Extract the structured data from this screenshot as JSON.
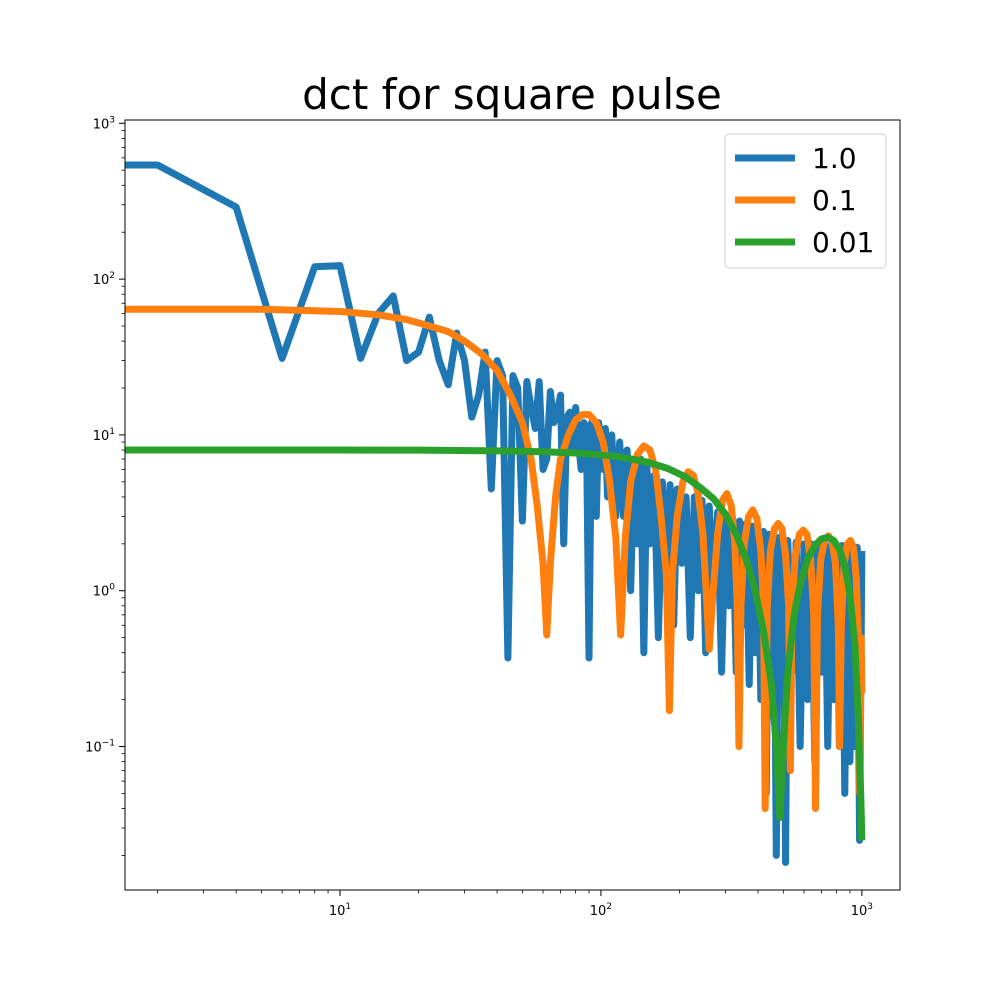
{
  "chart_data": {
    "type": "line",
    "title": "dct for square pulse",
    "xscale": "log",
    "yscale": "log",
    "xlim": [
      1.5,
      1400
    ],
    "ylim": [
      0.012,
      1050
    ],
    "xlabel": "",
    "ylabel": "",
    "x_ticks": [
      {
        "value": 10,
        "base": "10",
        "exp": "1"
      },
      {
        "value": 100,
        "base": "10",
        "exp": "2"
      },
      {
        "value": 1000,
        "base": "10",
        "exp": "3"
      }
    ],
    "y_ticks": [
      {
        "value": 0.1,
        "base": "10",
        "exp": "−1"
      },
      {
        "value": 1,
        "base": "10",
        "exp": "0"
      },
      {
        "value": 10,
        "base": "10",
        "exp": "1"
      },
      {
        "value": 100,
        "base": "10",
        "exp": "2"
      },
      {
        "value": 1000,
        "base": "10",
        "exp": "3"
      }
    ],
    "legend_position": "top-right",
    "series": [
      {
        "name": "1.0",
        "color": "#1f77b4",
        "points": [
          [
            1,
            540
          ],
          [
            2,
            540
          ],
          [
            4,
            290
          ],
          [
            6,
            31
          ],
          [
            8,
            120
          ],
          [
            10,
            122
          ],
          [
            12,
            31
          ],
          [
            14,
            60
          ],
          [
            16,
            78
          ],
          [
            18,
            30
          ],
          [
            20,
            34
          ],
          [
            22,
            57
          ],
          [
            24,
            30
          ],
          [
            26,
            21
          ],
          [
            28,
            45
          ],
          [
            30,
            30
          ],
          [
            32,
            13
          ],
          [
            34,
            18
          ],
          [
            36,
            34
          ],
          [
            38,
            4.5
          ],
          [
            40,
            30
          ],
          [
            42,
            24
          ],
          [
            44,
            0.37
          ],
          [
            46,
            24
          ],
          [
            48,
            20
          ],
          [
            50,
            2.8
          ],
          [
            52,
            22
          ],
          [
            54,
            15
          ],
          [
            56,
            11
          ],
          [
            58,
            22
          ],
          [
            60,
            6
          ],
          [
            62,
            7
          ],
          [
            64,
            19
          ],
          [
            66,
            12
          ],
          [
            68,
            14
          ],
          [
            70,
            18
          ],
          [
            72,
            2
          ],
          [
            74,
            13
          ],
          [
            76,
            14
          ],
          [
            78,
            8
          ],
          [
            80,
            15
          ],
          [
            82,
            9
          ],
          [
            84,
            6
          ],
          [
            86,
            12
          ],
          [
            88,
            11
          ],
          [
            90,
            0.37
          ],
          [
            92,
            12
          ],
          [
            94,
            10
          ],
          [
            96,
            3
          ],
          [
            98,
            12
          ],
          [
            100,
            9
          ],
          [
            102,
            6
          ],
          [
            104,
            11
          ],
          [
            106,
            4
          ],
          [
            110,
            10
          ],
          [
            114,
            3
          ],
          [
            118,
            9
          ],
          [
            122,
            3
          ],
          [
            126,
            8
          ],
          [
            130,
            1
          ],
          [
            134,
            7
          ],
          [
            138,
            2
          ],
          [
            142,
            7
          ],
          [
            146,
            0.4
          ],
          [
            150,
            6.5
          ],
          [
            154,
            2
          ],
          [
            160,
            5.5
          ],
          [
            166,
            0.5
          ],
          [
            172,
            5
          ],
          [
            178,
            1
          ],
          [
            184,
            4.8
          ],
          [
            190,
            0.6
          ],
          [
            196,
            4.5
          ],
          [
            204,
            1.5
          ],
          [
            212,
            4
          ],
          [
            220,
            0.5
          ],
          [
            228,
            4
          ],
          [
            236,
            1
          ],
          [
            244,
            3.8
          ],
          [
            252,
            0.4
          ],
          [
            260,
            3.5
          ],
          [
            270,
            1
          ],
          [
            280,
            3.2
          ],
          [
            290,
            0.3
          ],
          [
            300,
            3
          ],
          [
            310,
            0.8
          ],
          [
            320,
            2.9
          ],
          [
            330,
            0.3
          ],
          [
            340,
            2.8
          ],
          [
            350,
            0.6
          ],
          [
            360,
            2.7
          ],
          [
            370,
            0.25
          ],
          [
            380,
            2.6
          ],
          [
            390,
            0.4
          ],
          [
            400,
            2.5
          ],
          [
            410,
            0.2
          ],
          [
            420,
            2.4
          ],
          [
            430,
            0.05
          ],
          [
            440,
            2.3
          ],
          [
            450,
            0.3
          ],
          [
            460,
            2.2
          ],
          [
            470,
            0.02
          ],
          [
            480,
            2.2
          ],
          [
            490,
            0.2
          ],
          [
            500,
            2.1
          ],
          [
            510,
            0.018
          ],
          [
            520,
            2.1
          ],
          [
            540,
            0.3
          ],
          [
            560,
            2.05
          ],
          [
            580,
            0.1
          ],
          [
            600,
            2.0
          ],
          [
            620,
            0.2
          ],
          [
            640,
            2.0
          ],
          [
            660,
            0.08
          ],
          [
            680,
            2.0
          ],
          [
            700,
            0.3
          ],
          [
            720,
            2.0
          ],
          [
            740,
            0.1
          ],
          [
            760,
            1.95
          ],
          [
            780,
            0.2
          ],
          [
            800,
            1.95
          ],
          [
            820,
            0.1
          ],
          [
            840,
            1.95
          ],
          [
            860,
            0.05
          ],
          [
            880,
            1.9
          ],
          [
            900,
            0.08
          ],
          [
            920,
            1.9
          ],
          [
            940,
            0.1
          ],
          [
            960,
            1.9
          ],
          [
            980,
            0.025
          ],
          [
            1000,
            1.8
          ]
        ]
      },
      {
        "name": "0.1",
        "color": "#ff7f0e",
        "points": [
          [
            1,
            64
          ],
          [
            5,
            64
          ],
          [
            10,
            62
          ],
          [
            14,
            59
          ],
          [
            18,
            55
          ],
          [
            22,
            50
          ],
          [
            26,
            46
          ],
          [
            30,
            40
          ],
          [
            35,
            33
          ],
          [
            40,
            26
          ],
          [
            45,
            18
          ],
          [
            50,
            12
          ],
          [
            54,
            7
          ],
          [
            57,
            3.5
          ],
          [
            60,
            1.5
          ],
          [
            62,
            0.52
          ],
          [
            64,
            1.5
          ],
          [
            67,
            4
          ],
          [
            70,
            7
          ],
          [
            75,
            10
          ],
          [
            80,
            12.5
          ],
          [
            85,
            13.5
          ],
          [
            90,
            13.5
          ],
          [
            96,
            12
          ],
          [
            102,
            9
          ],
          [
            108,
            5
          ],
          [
            114,
            2.2
          ],
          [
            119,
            0.52
          ],
          [
            124,
            2.2
          ],
          [
            130,
            5
          ],
          [
            138,
            7.5
          ],
          [
            146,
            8.5
          ],
          [
            154,
            8
          ],
          [
            162,
            6
          ],
          [
            170,
            3
          ],
          [
            178,
            1.3
          ],
          [
            183,
            0.17
          ],
          [
            188,
            1.3
          ],
          [
            196,
            3
          ],
          [
            206,
            5
          ],
          [
            216,
            5.8
          ],
          [
            226,
            5.5
          ],
          [
            236,
            4.2
          ],
          [
            246,
            2.3
          ],
          [
            254,
            0.9
          ],
          [
            260,
            0.42
          ],
          [
            268,
            0.9
          ],
          [
            280,
            2.3
          ],
          [
            292,
            3.8
          ],
          [
            304,
            4.2
          ],
          [
            316,
            3.5
          ],
          [
            326,
            2.0
          ],
          [
            333,
            0.8
          ],
          [
            338,
            0.1
          ],
          [
            344,
            0.8
          ],
          [
            354,
            2.0
          ],
          [
            368,
            3.0
          ],
          [
            382,
            3.3
          ],
          [
            396,
            2.9
          ],
          [
            410,
            1.8
          ],
          [
            420,
            0.8
          ],
          [
            426,
            0.04
          ],
          [
            434,
            0.8
          ],
          [
            446,
            1.8
          ],
          [
            462,
            2.5
          ],
          [
            478,
            2.7
          ],
          [
            494,
            2.5
          ],
          [
            510,
            1.7
          ],
          [
            524,
            0.8
          ],
          [
            532,
            0.07
          ],
          [
            540,
            0.8
          ],
          [
            556,
            1.7
          ],
          [
            576,
            2.3
          ],
          [
            596,
            2.45
          ],
          [
            616,
            2.3
          ],
          [
            636,
            1.6
          ],
          [
            654,
            0.7
          ],
          [
            664,
            0.04
          ],
          [
            676,
            0.7
          ],
          [
            696,
            1.6
          ],
          [
            720,
            2.1
          ],
          [
            744,
            2.25
          ],
          [
            768,
            2.1
          ],
          [
            792,
            1.5
          ],
          [
            812,
            0.6
          ],
          [
            822,
            0.1
          ],
          [
            834,
            0.6
          ],
          [
            856,
            1.5
          ],
          [
            880,
            2.0
          ],
          [
            904,
            2.1
          ],
          [
            928,
            1.9
          ],
          [
            952,
            1.2
          ],
          [
            970,
            0.5
          ],
          [
            982,
            0.05
          ],
          [
            994,
            0.5
          ],
          [
            1000,
            0.22
          ]
        ]
      },
      {
        "name": "0.01",
        "color": "#2ca02c",
        "points": [
          [
            1,
            8.0
          ],
          [
            10,
            8.0
          ],
          [
            20,
            7.98
          ],
          [
            40,
            7.9
          ],
          [
            60,
            7.8
          ],
          [
            80,
            7.65
          ],
          [
            100,
            7.45
          ],
          [
            120,
            7.2
          ],
          [
            150,
            6.7
          ],
          [
            180,
            6.1
          ],
          [
            210,
            5.4
          ],
          [
            240,
            4.6
          ],
          [
            270,
            3.9
          ],
          [
            300,
            3.1
          ],
          [
            330,
            2.3
          ],
          [
            360,
            1.6
          ],
          [
            390,
            1.0
          ],
          [
            420,
            0.55
          ],
          [
            450,
            0.25
          ],
          [
            470,
            0.1
          ],
          [
            485,
            0.035
          ],
          [
            500,
            0.1
          ],
          [
            520,
            0.3
          ],
          [
            550,
            0.7
          ],
          [
            580,
            1.1
          ],
          [
            620,
            1.6
          ],
          [
            660,
            1.95
          ],
          [
            700,
            2.15
          ],
          [
            740,
            2.2
          ],
          [
            780,
            2.1
          ],
          [
            820,
            1.85
          ],
          [
            860,
            1.45
          ],
          [
            900,
            0.95
          ],
          [
            940,
            0.45
          ],
          [
            970,
            0.15
          ],
          [
            990,
            0.05
          ],
          [
            1000,
            0.025
          ]
        ]
      }
    ]
  }
}
